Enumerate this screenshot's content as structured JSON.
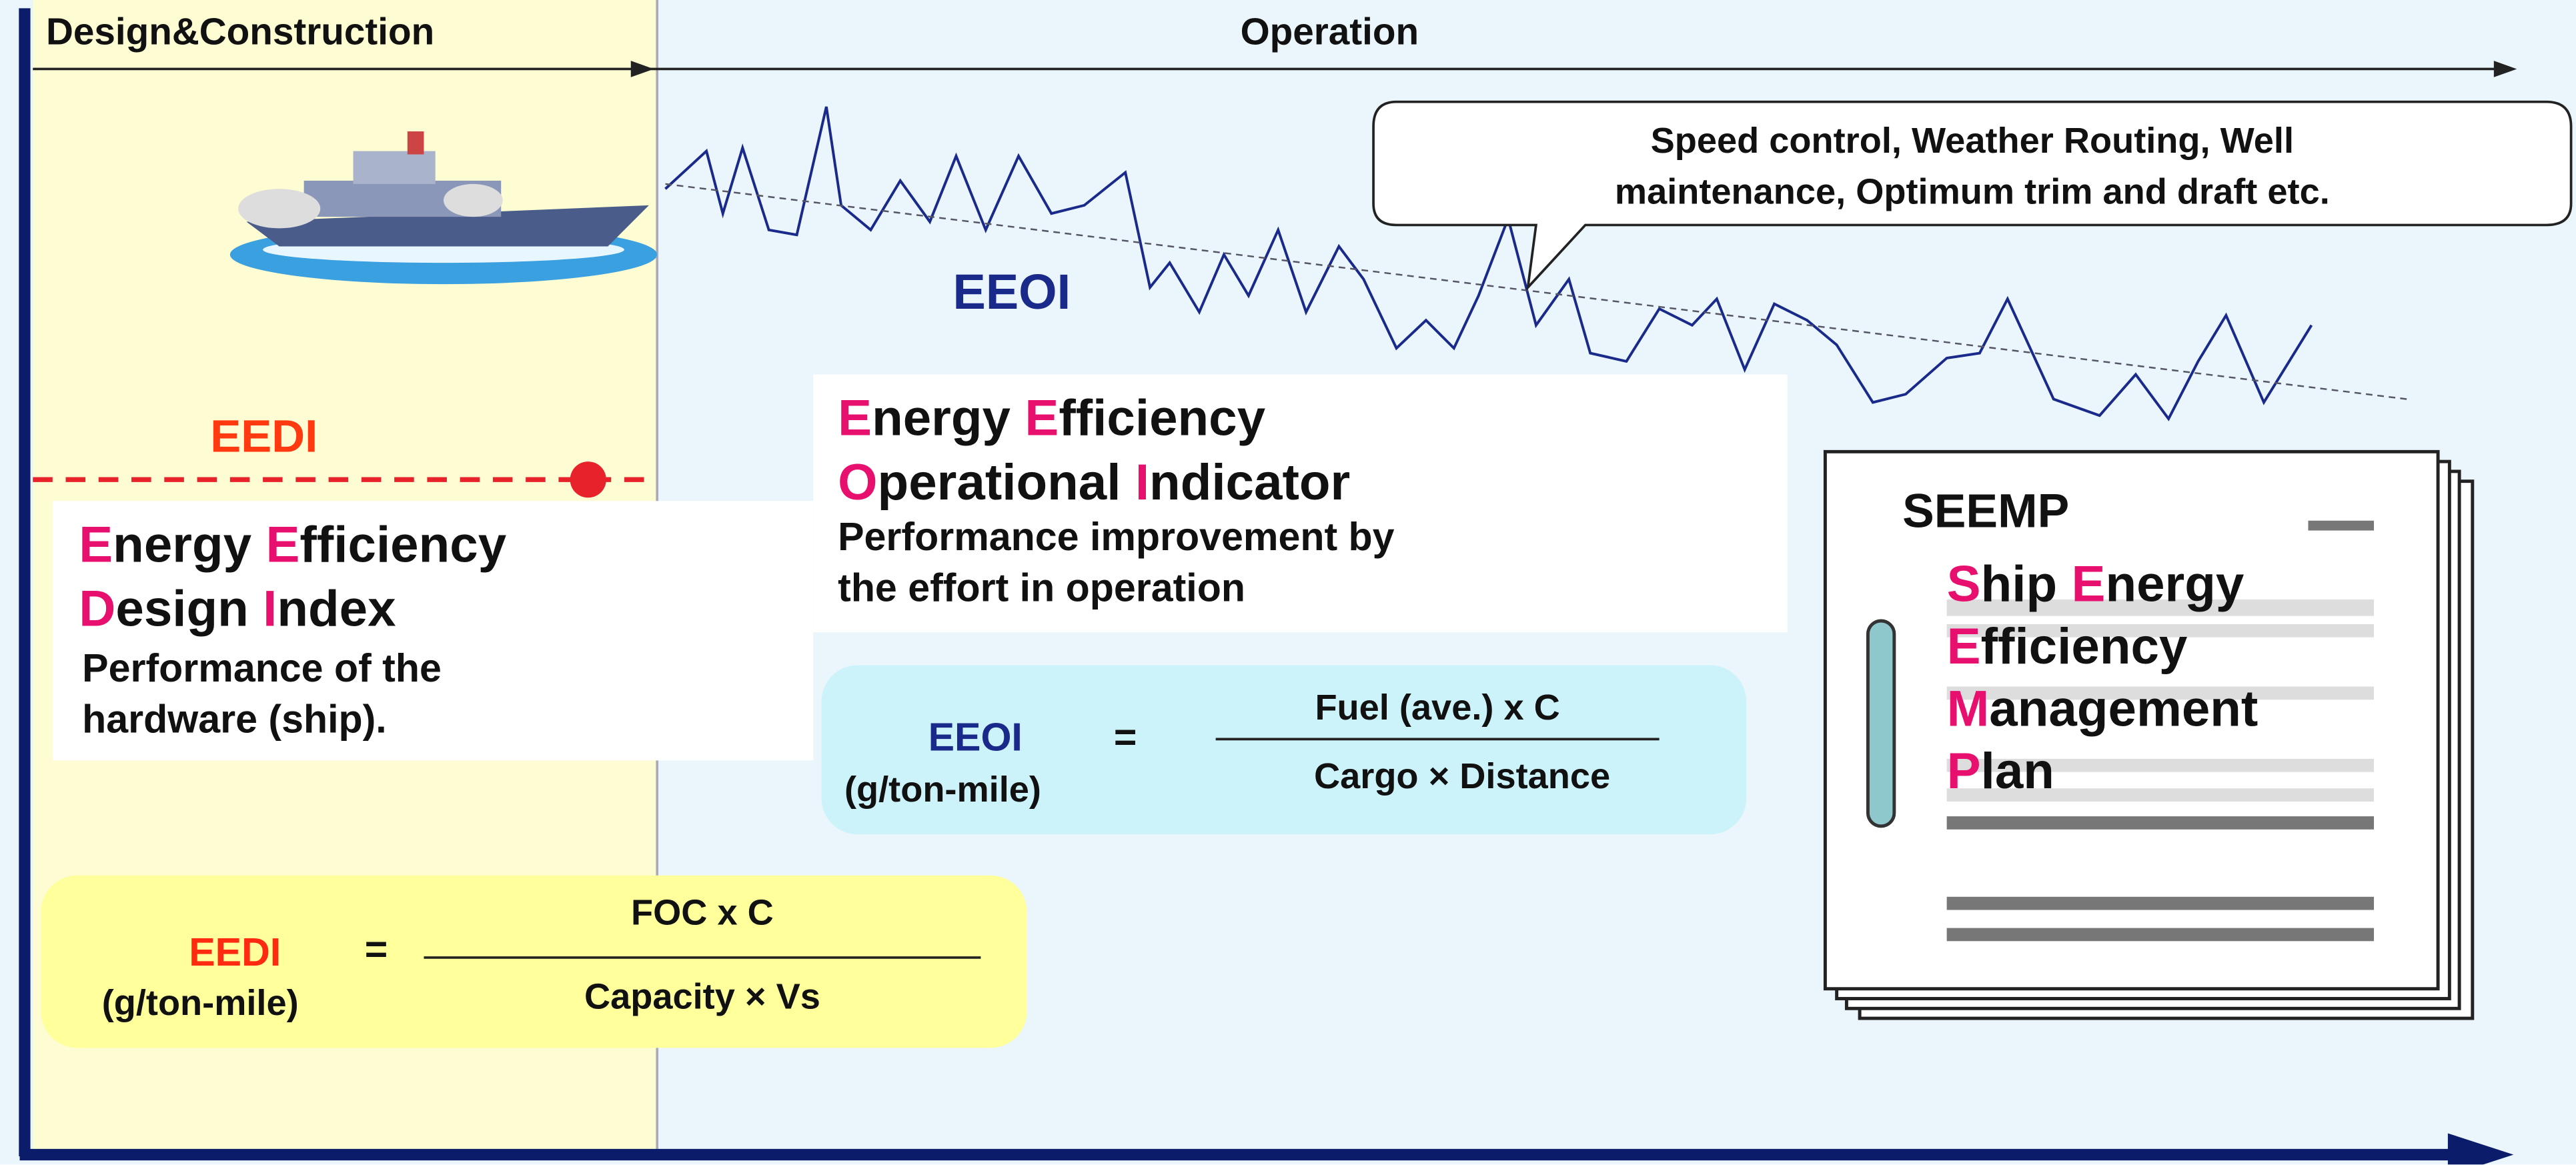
{
  "phases": {
    "design": "Design&Construction",
    "operation": "Operation"
  },
  "eedi": {
    "label": "EEDI",
    "name": [
      [
        "Energy",
        "Efficiency"
      ],
      [
        "Design",
        "Index"
      ]
    ],
    "description": [
      "Performance of the",
      "hardware (ship)."
    ],
    "formula": {
      "lhs": "EEDI",
      "unit": "(g/ton-mile)",
      "equals": "=",
      "numerator": "FOC x C",
      "denominator": "Capacity × Vs"
    }
  },
  "eeoi": {
    "label": "EEOI",
    "name": [
      [
        "Energy",
        "Efficiency"
      ],
      [
        "Operational",
        "Indicator"
      ]
    ],
    "description": [
      "Performance improvement by",
      "the effort in operation"
    ],
    "formula": {
      "lhs": "EEOI",
      "unit": "(g/ton-mile)",
      "equals": "=",
      "numerator": "Fuel (ave.) x C",
      "denominator": "Cargo × Distance"
    }
  },
  "callout": [
    "Speed control, Weather Routing, Well",
    "maintenance, Optimum trim and draft etc."
  ],
  "seemp": {
    "title": "SEEMP",
    "name": [
      [
        "Ship",
        "Energy"
      ],
      [
        "Efficiency"
      ],
      [
        "Management"
      ],
      [
        "Plan"
      ]
    ]
  }
}
